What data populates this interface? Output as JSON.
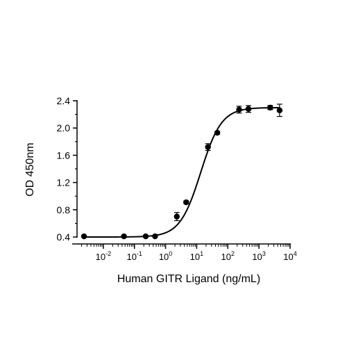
{
  "chart_data": {
    "type": "scatter",
    "title": "",
    "xlabel": "Human GITR Ligand (ng/mL)",
    "ylabel": "OD 450nm",
    "x_scale": "log10",
    "xlim": [
      0.001,
      10000
    ],
    "ylim": [
      0.4,
      2.4
    ],
    "x_ticks": [
      {
        "value": 0.01,
        "base": "10",
        "exp": "-2"
      },
      {
        "value": 0.1,
        "base": "10",
        "exp": "-1"
      },
      {
        "value": 1,
        "base": "10",
        "exp": "0"
      },
      {
        "value": 10,
        "base": "10",
        "exp": "1"
      },
      {
        "value": 100,
        "base": "10",
        "exp": "2"
      },
      {
        "value": 1000,
        "base": "10",
        "exp": "3"
      },
      {
        "value": 10000,
        "base": "10",
        "exp": "4"
      }
    ],
    "y_ticks": [
      {
        "value": 0.4,
        "label": "0.4"
      },
      {
        "value": 0.8,
        "label": "0.8"
      },
      {
        "value": 1.2,
        "label": "1.2"
      },
      {
        "value": 1.6,
        "label": "1.6"
      },
      {
        "value": 2.0,
        "label": "2.0"
      },
      {
        "value": 2.4,
        "label": "2.4"
      }
    ],
    "grid": false,
    "series": [
      {
        "points": [
          {
            "x": 0.0024,
            "y": 0.41,
            "err": 0.0
          },
          {
            "x": 0.046,
            "y": 0.41,
            "err": 0.0
          },
          {
            "x": 0.23,
            "y": 0.41,
            "err": 0.01
          },
          {
            "x": 0.46,
            "y": 0.41,
            "err": 0.0
          },
          {
            "x": 2.3,
            "y": 0.7,
            "err": 0.06
          },
          {
            "x": 4.6,
            "y": 0.91,
            "err": 0.02
          },
          {
            "x": 23,
            "y": 1.72,
            "err": 0.05
          },
          {
            "x": 46,
            "y": 1.93,
            "err": 0.02
          },
          {
            "x": 230,
            "y": 2.27,
            "err": 0.05
          },
          {
            "x": 460,
            "y": 2.28,
            "err": 0.05
          },
          {
            "x": 2300,
            "y": 2.3,
            "err": 0.03
          },
          {
            "x": 4600,
            "y": 2.26,
            "err": 0.09
          }
        ],
        "fit": {
          "model": "4PL",
          "bottom": 0.4,
          "top": 2.3,
          "ec50": 13.5,
          "hill": 1.3
        }
      }
    ]
  }
}
